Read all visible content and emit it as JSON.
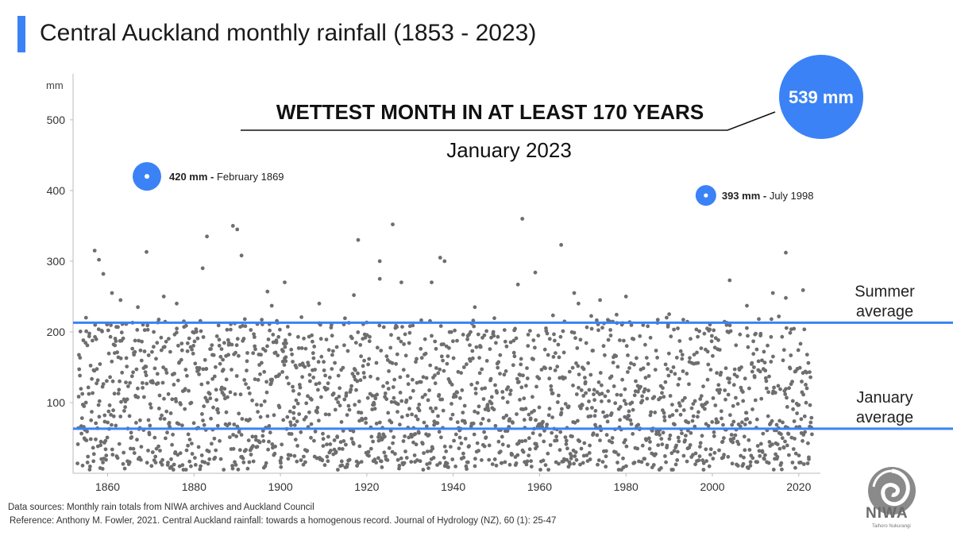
{
  "title": "Central Auckland monthly rainfall (1853 - 2023)",
  "chart_data": {
    "type": "scatter",
    "y_unit": "mm",
    "x_ticks": [
      1860,
      1880,
      1900,
      1920,
      1940,
      1960,
      1980,
      2000,
      2020
    ],
    "y_ticks": [
      100,
      200,
      300,
      400,
      500
    ],
    "xlim": [
      1852,
      2025
    ],
    "ylim": [
      0,
      565
    ],
    "grid": false,
    "reference_lines": [
      {
        "label_lines": [
          "Summer",
          "average"
        ],
        "value": 213,
        "color": "#3b82f6"
      },
      {
        "label_lines": [
          "January",
          "average"
        ],
        "value": 63,
        "color": "#3b82f6"
      }
    ],
    "highlights": [
      {
        "date": "January 2023",
        "value_label": "539 mm",
        "value": 539
      },
      {
        "date": "February 1869",
        "value_label": "420 mm",
        "value": 420
      },
      {
        "date": "July 1998",
        "value_label": "393 mm",
        "value": 393
      }
    ],
    "highlight_labels": [
      {
        "bold": "420 mm -",
        "rest": " February 1869"
      },
      {
        "bold": "393 mm -",
        "rest": " July 1998"
      }
    ],
    "annotation": {
      "headline": "WETTEST MONTH IN AT LEAST 170 YEARS",
      "subhead": "January 2023",
      "value_label": "539 mm"
    },
    "notable_points": [
      [
        1855,
        220
      ],
      [
        1857,
        315
      ],
      [
        1858,
        302
      ],
      [
        1859,
        282
      ],
      [
        1861,
        255
      ],
      [
        1863,
        245
      ],
      [
        1867,
        235
      ],
      [
        1869,
        313
      ],
      [
        1873,
        250
      ],
      [
        1876,
        240
      ],
      [
        1882,
        290
      ],
      [
        1883,
        335
      ],
      [
        1889,
        350
      ],
      [
        1890,
        345
      ],
      [
        1891,
        308
      ],
      [
        1897,
        257
      ],
      [
        1898,
        237
      ],
      [
        1901,
        270
      ],
      [
        1909,
        240
      ],
      [
        1917,
        252
      ],
      [
        1918,
        330
      ],
      [
        1923,
        300
      ],
      [
        1923,
        275
      ],
      [
        1926,
        352
      ],
      [
        1928,
        270
      ],
      [
        1935,
        270
      ],
      [
        1937,
        305
      ],
      [
        1938,
        300
      ],
      [
        1945,
        235
      ],
      [
        1955,
        267
      ],
      [
        1956,
        360
      ],
      [
        1959,
        284
      ],
      [
        1965,
        323
      ],
      [
        1968,
        255
      ],
      [
        1969,
        240
      ],
      [
        1974,
        245
      ],
      [
        1980,
        250
      ],
      [
        1990,
        225
      ],
      [
        1992,
        205
      ],
      [
        2004,
        273
      ],
      [
        2008,
        237
      ],
      [
        2014,
        255
      ],
      [
        2017,
        312
      ],
      [
        2017,
        248
      ],
      [
        2021,
        259
      ]
    ],
    "background_sample_note": "Approximately 2000 monthly totals, mostly between 5 and 230 mm"
  },
  "sources": {
    "line1": "Data sources: Monthly rain totals from NIWA archives and Auckland Council",
    "line2": "Reference: Anthony M. Fowler, 2021. Central Auckland rainfall: towards a homogenous record. Journal of Hydrology (NZ), 60 (1): 25-47"
  },
  "logo": {
    "name": "NIWA",
    "tagline": "Taihoro Nukurangi"
  },
  "colors": {
    "accent": "#3b82f6",
    "points": "#6e6e6e",
    "text": "#222222"
  }
}
